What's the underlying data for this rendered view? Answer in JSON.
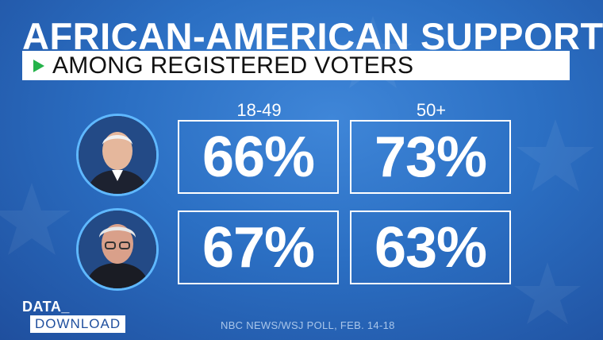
{
  "header": {
    "title": "AFRICAN-AMERICAN SUPPORT",
    "subtitle": "AMONG REGISTERED VOTERS",
    "accent_color": "#25b34a"
  },
  "table": {
    "columns": [
      "18-49",
      "50+"
    ],
    "rows": [
      {
        "photo": "candidate-photo-1",
        "values": [
          "66%",
          "73%"
        ]
      },
      {
        "photo": "candidate-photo-2",
        "values": [
          "67%",
          "63%"
        ]
      }
    ]
  },
  "footer": {
    "logo_line1": "DATA_",
    "logo_line2": "DOWNLOAD",
    "source": "NBC NEWS/WSJ POLL, FEB. 14-18"
  },
  "colors": {
    "background": "#2b6fc3",
    "avatar_ring": "#5fb8ff"
  }
}
